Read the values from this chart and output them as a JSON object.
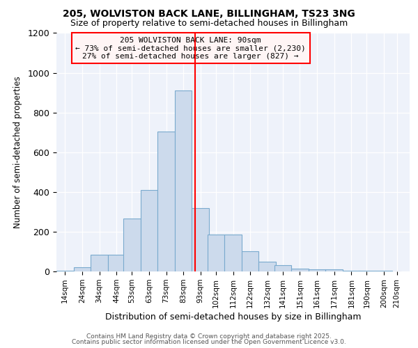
{
  "title1": "205, WOLVISTON BACK LANE, BILLINGHAM, TS23 3NG",
  "title2": "Size of property relative to semi-detached houses in Billingham",
  "xlabel": "Distribution of semi-detached houses by size in Billingham",
  "ylabel_text": "Number of semi-detached properties",
  "annotation_title": "205 WOLVISTON BACK LANE: 90sqm",
  "annotation_line1": "← 73% of semi-detached houses are smaller (2,230)",
  "annotation_line2": "27% of semi-detached houses are larger (827) →",
  "bar_labels": [
    "14sqm",
    "24sqm",
    "34sqm",
    "44sqm",
    "53sqm",
    "63sqm",
    "73sqm",
    "83sqm",
    "93sqm",
    "102sqm",
    "112sqm",
    "122sqm",
    "132sqm",
    "141sqm",
    "151sqm",
    "161sqm",
    "171sqm",
    "181sqm",
    "190sqm",
    "200sqm",
    "210sqm"
  ],
  "bar_lefts": [
    9,
    19,
    29,
    39,
    48,
    58,
    68,
    78,
    88,
    97,
    107,
    117,
    127,
    136,
    146,
    156,
    166,
    176,
    185,
    195,
    205
  ],
  "bar_widths": [
    10,
    10,
    10,
    10,
    10,
    10,
    10,
    10,
    10,
    10,
    10,
    10,
    10,
    10,
    10,
    10,
    10,
    10,
    10,
    10,
    5
  ],
  "bar_heights": [
    5,
    20,
    85,
    85,
    265,
    410,
    705,
    910,
    320,
    185,
    185,
    100,
    50,
    30,
    14,
    10,
    10,
    4,
    4,
    4,
    0
  ],
  "ylim": [
    0,
    1200
  ],
  "yticks": [
    0,
    200,
    400,
    600,
    800,
    1000,
    1200
  ],
  "bar_color": "#ccdaec",
  "bar_edge_color": "#7aaace",
  "vline_color": "red",
  "vline_x": 90,
  "bg_color": "#eef2fa",
  "annotation_box_facecolor": "#fff5f5",
  "annotation_box_edge": "red",
  "footer1": "Contains HM Land Registry data © Crown copyright and database right 2025.",
  "footer2": "Contains public sector information licensed under the Open Government Licence v3.0."
}
